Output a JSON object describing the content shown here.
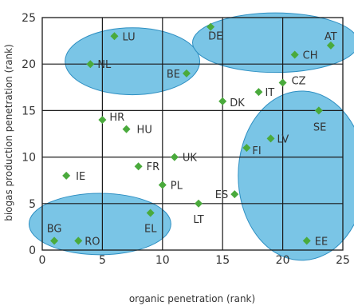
{
  "chart_data": {
    "type": "scatter",
    "xlabel": "organic penetration (rank)",
    "ylabel": "biogas production penetration (rank)",
    "xlim": [
      0,
      25
    ],
    "ylim": [
      0,
      25
    ],
    "xticks": [
      "0",
      "5",
      "10",
      "15",
      "20",
      "25"
    ],
    "yticks": [
      "0",
      "5",
      "10",
      "15",
      "20",
      "25"
    ],
    "grid": true,
    "marker_color": "#4aaa3c",
    "cluster_fill": "#6bbfe3",
    "cluster_stroke": "#2e8fc2",
    "points": [
      {
        "label": "LU",
        "x": 6,
        "y": 23
      },
      {
        "label": "DE",
        "x": 14,
        "y": 24
      },
      {
        "label": "AT",
        "x": 24,
        "y": 22
      },
      {
        "label": "NL",
        "x": 4,
        "y": 20
      },
      {
        "label": "CH",
        "x": 21,
        "y": 21
      },
      {
        "label": "BE",
        "x": 12,
        "y": 19
      },
      {
        "label": "CZ",
        "x": 20,
        "y": 18
      },
      {
        "label": "IT",
        "x": 18,
        "y": 17
      },
      {
        "label": "DK",
        "x": 15,
        "y": 16
      },
      {
        "label": "SE",
        "x": 23,
        "y": 15
      },
      {
        "label": "HR",
        "x": 5,
        "y": 14
      },
      {
        "label": "HU",
        "x": 7,
        "y": 13
      },
      {
        "label": "LV",
        "x": 19,
        "y": 12
      },
      {
        "label": "FI",
        "x": 17,
        "y": 11
      },
      {
        "label": "UK",
        "x": 11,
        "y": 10
      },
      {
        "label": "FR",
        "x": 8,
        "y": 9
      },
      {
        "label": "IE",
        "x": 2,
        "y": 8
      },
      {
        "label": "PL",
        "x": 10,
        "y": 7
      },
      {
        "label": "ES",
        "x": 16,
        "y": 6
      },
      {
        "label": "LT",
        "x": 13,
        "y": 5
      },
      {
        "label": "EL",
        "x": 9,
        "y": 4
      },
      {
        "label": "BG",
        "x": 1,
        "y": 1
      },
      {
        "label": "RO",
        "x": 3,
        "y": 1
      },
      {
        "label": "EE",
        "x": 22,
        "y": 1
      }
    ],
    "clusters": [
      {
        "cx": 7.5,
        "cy": 20.3,
        "rx": 5.6,
        "ry": 3.6
      },
      {
        "cx": 19.4,
        "cy": 22.3,
        "rx": 6.9,
        "ry": 3.2
      },
      {
        "cx": 21.6,
        "cy": 8.0,
        "rx": 5.3,
        "ry": 9.1
      },
      {
        "cx": 4.8,
        "cy": 2.8,
        "rx": 5.9,
        "ry": 3.3
      }
    ]
  }
}
